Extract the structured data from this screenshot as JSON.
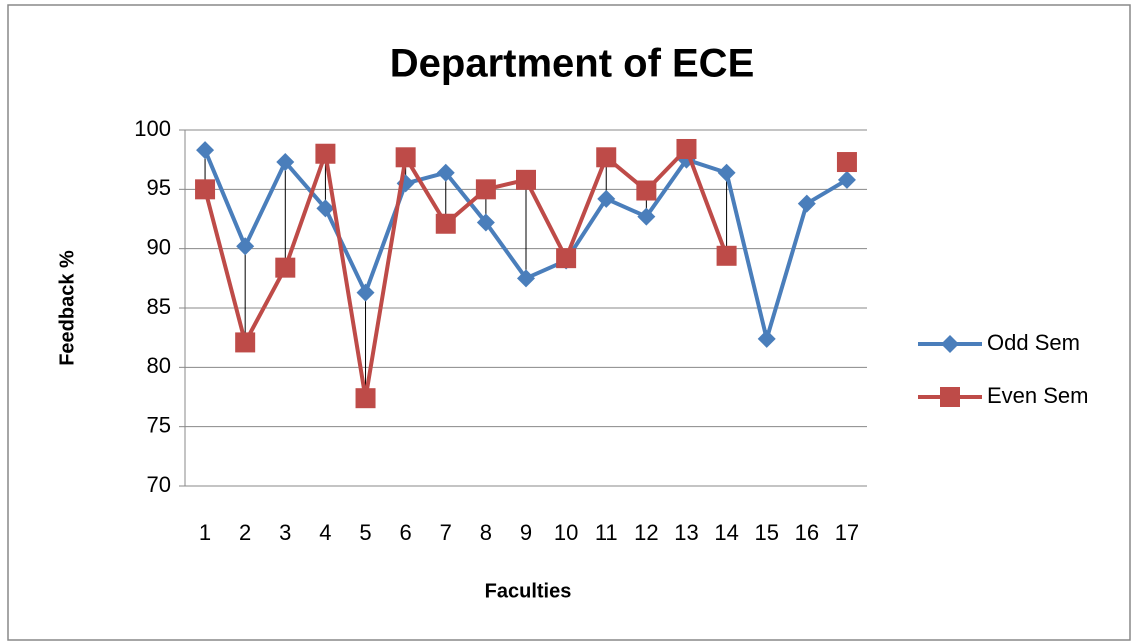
{
  "chart_data": {
    "type": "line",
    "title": "Department of ECE",
    "x_label": "Faculties",
    "y_label": "Feedback %",
    "categories": [
      "1",
      "2",
      "3",
      "4",
      "5",
      "6",
      "7",
      "8",
      "9",
      "10",
      "11",
      "12",
      "13",
      "14",
      "15",
      "16",
      "17"
    ],
    "series": [
      {
        "name": "Odd Sem",
        "color": "#4a7ebb",
        "marker": "diamond",
        "values": [
          98.3,
          90.2,
          97.3,
          93.4,
          86.3,
          95.5,
          96.4,
          92.2,
          87.5,
          89.0,
          94.2,
          92.7,
          97.5,
          96.4,
          82.4,
          93.8,
          95.8
        ]
      },
      {
        "name": "Even Sem",
        "color": "#be4b48",
        "marker": "square",
        "values": [
          95.0,
          82.1,
          88.4,
          98.0,
          77.4,
          97.7,
          92.1,
          95.0,
          95.8,
          89.2,
          97.7,
          94.9,
          98.4,
          89.4,
          null,
          null,
          97.3
        ]
      }
    ],
    "ylim": [
      70,
      100
    ],
    "yticks": [
      70,
      75,
      80,
      85,
      90,
      95,
      100
    ],
    "grid": true,
    "high_low_lines": true,
    "legend": "right"
  }
}
